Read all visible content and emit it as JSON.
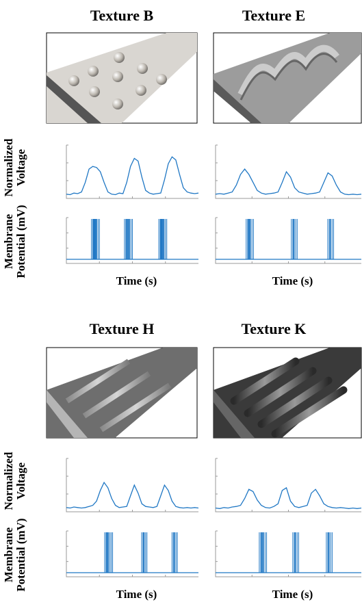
{
  "rows": [
    {
      "ylabel_voltage": [
        "Normalized",
        "Voltage"
      ],
      "ylabel_potential": [
        "Membrane",
        "Potential (mV)"
      ],
      "panels": [
        {
          "title": "Texture B",
          "xlabel": "Time (s)",
          "voltage": [
            0.08,
            0.07,
            0.1,
            0.09,
            0.12,
            0.3,
            0.55,
            0.6,
            0.58,
            0.5,
            0.3,
            0.12,
            0.08,
            0.07,
            0.1,
            0.09,
            0.3,
            0.6,
            0.75,
            0.7,
            0.4,
            0.15,
            0.1,
            0.08,
            0.09,
            0.1,
            0.35,
            0.65,
            0.78,
            0.72,
            0.45,
            0.2,
            0.12,
            0.1,
            0.09,
            0.1
          ],
          "spikes": [
            0.19,
            0.2,
            0.205,
            0.21,
            0.215,
            0.22,
            0.225,
            0.23,
            0.24,
            0.25,
            0.44,
            0.45,
            0.455,
            0.46,
            0.465,
            0.47,
            0.475,
            0.48,
            0.49,
            0.5,
            0.7,
            0.71,
            0.715,
            0.72,
            0.725,
            0.73,
            0.735,
            0.74,
            0.75,
            0.76
          ]
        },
        {
          "title": "Texture E",
          "xlabel": "Time (s)",
          "voltage": [
            0.08,
            0.09,
            0.08,
            0.1,
            0.12,
            0.25,
            0.45,
            0.55,
            0.45,
            0.3,
            0.15,
            0.1,
            0.08,
            0.09,
            0.1,
            0.12,
            0.3,
            0.5,
            0.4,
            0.2,
            0.12,
            0.1,
            0.08,
            0.09,
            0.1,
            0.12,
            0.3,
            0.48,
            0.42,
            0.25,
            0.12,
            0.08,
            0.07,
            0.08,
            0.07,
            0.08
          ],
          "spikes": [
            0.21,
            0.22,
            0.225,
            0.23,
            0.235,
            0.24,
            0.25,
            0.26,
            0.52,
            0.53,
            0.535,
            0.54,
            0.55,
            0.56,
            0.77,
            0.78,
            0.785,
            0.79,
            0.8,
            0.81
          ]
        }
      ]
    },
    {
      "ylabel_voltage": [
        "Normalized",
        "Voltage"
      ],
      "ylabel_potential": [
        "Membrane",
        "Potential (mV)"
      ],
      "panels": [
        {
          "title": "Texture H",
          "xlabel": "Time (s)",
          "voltage": [
            0.08,
            0.07,
            0.09,
            0.08,
            0.07,
            0.08,
            0.1,
            0.12,
            0.2,
            0.4,
            0.55,
            0.45,
            0.25,
            0.12,
            0.08,
            0.09,
            0.1,
            0.3,
            0.5,
            0.35,
            0.15,
            0.1,
            0.09,
            0.08,
            0.1,
            0.3,
            0.5,
            0.4,
            0.2,
            0.1,
            0.08,
            0.07,
            0.08,
            0.07,
            0.08,
            0.07
          ],
          "spikes": [
            0.29,
            0.3,
            0.305,
            0.31,
            0.315,
            0.32,
            0.33,
            0.34,
            0.35,
            0.57,
            0.58,
            0.585,
            0.59,
            0.6,
            0.61,
            0.8,
            0.81,
            0.815,
            0.82,
            0.83,
            0.84
          ]
        },
        {
          "title": "Texture K",
          "xlabel": "Time (s)",
          "voltage": [
            0.07,
            0.06,
            0.08,
            0.07,
            0.09,
            0.1,
            0.12,
            0.25,
            0.42,
            0.38,
            0.22,
            0.12,
            0.08,
            0.07,
            0.1,
            0.15,
            0.4,
            0.45,
            0.2,
            0.1,
            0.08,
            0.1,
            0.12,
            0.35,
            0.42,
            0.3,
            0.15,
            0.1,
            0.08,
            0.07,
            0.08,
            0.07,
            0.06,
            0.07,
            0.06,
            0.07
          ],
          "spikes": [
            0.3,
            0.31,
            0.315,
            0.32,
            0.325,
            0.33,
            0.34,
            0.35,
            0.53,
            0.54,
            0.545,
            0.55,
            0.56,
            0.57,
            0.76,
            0.77,
            0.775,
            0.78,
            0.79,
            0.8
          ]
        }
      ]
    }
  ]
}
